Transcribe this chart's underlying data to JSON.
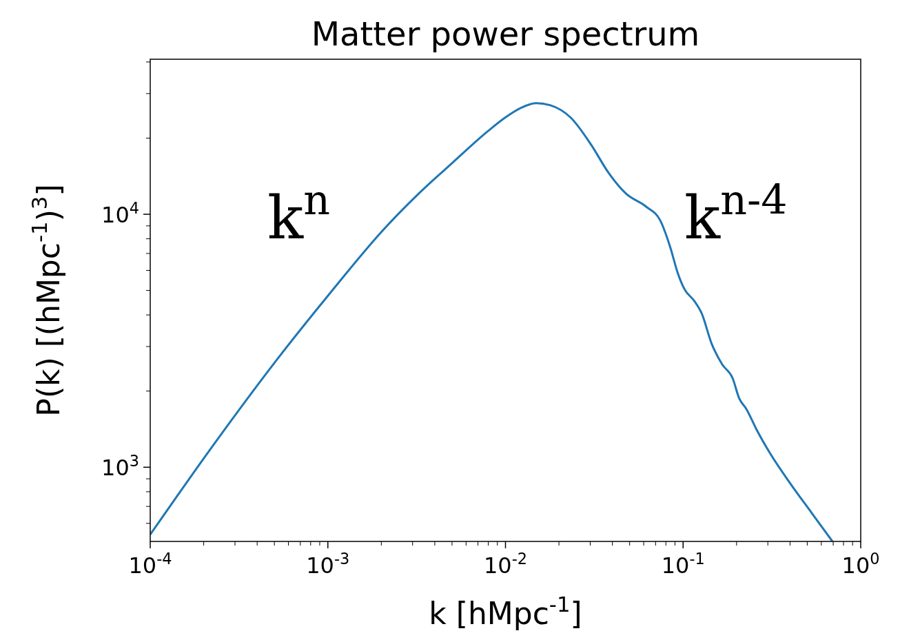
{
  "chart_data": {
    "type": "line",
    "title": "Matter power spectrum",
    "xlabel": "k [hMpc$^{-1}$]",
    "ylabel": "P(k) [(hMpc$^{-1}$)$^{3}$]",
    "log": "xy",
    "grid": false,
    "marker": "none",
    "line_style": "solid",
    "xlim": [
      0.0001,
      1
    ],
    "ylim": [
      509,
      41000
    ],
    "xticks": [
      {
        "value": 0.0001,
        "label": "10$^{-4}$"
      },
      {
        "value": 0.001,
        "label": "10$^{-3}$"
      },
      {
        "value": 0.01,
        "label": "10$^{-2}$"
      },
      {
        "value": 0.1,
        "label": "10$^{-1}$"
      },
      {
        "value": 1,
        "label": "10$^{0}$"
      },
      {
        "value": 0.0002,
        "label": null
      },
      {
        "value": 0.0003,
        "label": null
      },
      {
        "value": 0.0004,
        "label": null
      },
      {
        "value": 0.0005,
        "label": null
      },
      {
        "value": 0.0006,
        "label": null
      },
      {
        "value": 0.0007,
        "label": null
      },
      {
        "value": 0.0008,
        "label": null
      },
      {
        "value": 0.0009,
        "label": null
      },
      {
        "value": 0.002,
        "label": null
      },
      {
        "value": 0.003,
        "label": null
      },
      {
        "value": 0.004,
        "label": null
      },
      {
        "value": 0.005,
        "label": null
      },
      {
        "value": 0.006,
        "label": null
      },
      {
        "value": 0.007,
        "label": null
      },
      {
        "value": 0.008,
        "label": null
      },
      {
        "value": 0.009,
        "label": null
      },
      {
        "value": 0.02,
        "label": null
      },
      {
        "value": 0.03,
        "label": null
      },
      {
        "value": 0.04,
        "label": null
      },
      {
        "value": 0.05,
        "label": null
      },
      {
        "value": 0.06,
        "label": null
      },
      {
        "value": 0.07,
        "label": null
      },
      {
        "value": 0.08,
        "label": null
      },
      {
        "value": 0.09,
        "label": null
      },
      {
        "value": 0.2,
        "label": null
      },
      {
        "value": 0.3,
        "label": null
      },
      {
        "value": 0.4,
        "label": null
      },
      {
        "value": 0.5,
        "label": null
      },
      {
        "value": 0.6,
        "label": null
      },
      {
        "value": 0.7,
        "label": null
      },
      {
        "value": 0.8,
        "label": null
      },
      {
        "value": 0.9,
        "label": null
      }
    ],
    "yticks": [
      {
        "value": 1000,
        "label": "10$^{3}$"
      },
      {
        "value": 10000,
        "label": "10$^{4}$"
      },
      {
        "value": 600,
        "label": null
      },
      {
        "value": 700,
        "label": null
      },
      {
        "value": 800,
        "label": null
      },
      {
        "value": 900,
        "label": null
      },
      {
        "value": 2000,
        "label": null
      },
      {
        "value": 3000,
        "label": null
      },
      {
        "value": 4000,
        "label": null
      },
      {
        "value": 5000,
        "label": null
      },
      {
        "value": 6000,
        "label": null
      },
      {
        "value": 7000,
        "label": null
      },
      {
        "value": 8000,
        "label": null
      },
      {
        "value": 9000,
        "label": null
      },
      {
        "value": 20000,
        "label": null
      },
      {
        "value": 30000,
        "label": null
      },
      {
        "value": 40000,
        "label": null
      }
    ],
    "annotations": [
      "k$^{n}$",
      "k$^{n-4}$"
    ],
    "series": [
      {
        "color": "#1f77b4",
        "x": [
          0.0001,
          0.000223,
          0.000546,
          0.001,
          0.00208,
          0.00326,
          0.00509,
          0.00796,
          0.00995,
          0.01245,
          0.0149,
          0.0178,
          0.0233,
          0.0304,
          0.038,
          0.0475,
          0.0621,
          0.0743,
          0.0849,
          0.0929,
          0.1016,
          0.116,
          0.127,
          0.145,
          0.166,
          0.19,
          0.207,
          0.227,
          0.259,
          0.31,
          0.405,
          0.531,
          0.693
        ],
        "values": [
          542,
          1205,
          2800,
          4760,
          8770,
          12100,
          16100,
          21300,
          24100,
          26500,
          27500,
          27000,
          24100,
          18800,
          14600,
          12100,
          10700,
          9460,
          7360,
          5910,
          5070,
          4530,
          4070,
          3070,
          2550,
          2250,
          1870,
          1700,
          1410,
          1130,
          855,
          658,
          509
        ]
      }
    ]
  }
}
